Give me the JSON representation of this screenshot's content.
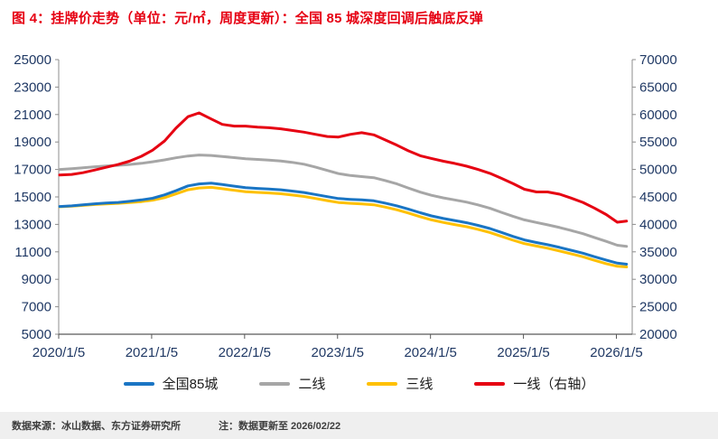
{
  "title": {
    "text": "图 4：挂牌价走势（单位：元/㎡，周度更新）：全国 85 城深度回调后触底反弹",
    "color": "#e60012"
  },
  "footer": {
    "source": "数据来源：冰山数据、东方证券研究所",
    "note": "注：数据更新至 2026/02/22"
  },
  "colors": {
    "title_red": "#e60012",
    "axis_label_navy": "#1f3864",
    "axis_line": "#8c8c8c",
    "x_axis_line": "#595959"
  },
  "chart_data": {
    "type": "line",
    "title": "挂牌价走势（元/㎡，周度更新）",
    "grid": false,
    "legend_position": "bottom",
    "x_domain": [
      2020.01,
      2026.18
    ],
    "x_ticks": [
      {
        "x": 2020.01,
        "label": "2020/1/5"
      },
      {
        "x": 2021.01,
        "label": "2021/1/5"
      },
      {
        "x": 2022.01,
        "label": "2022/1/5"
      },
      {
        "x": 2023.01,
        "label": "2023/1/5"
      },
      {
        "x": 2024.01,
        "label": "2024/1/5"
      },
      {
        "x": 2025.01,
        "label": "2025/1/5"
      },
      {
        "x": 2026.01,
        "label": "2026/1/5"
      }
    ],
    "left_axis": {
      "min": 5000,
      "max": 25000,
      "ticks": [
        25000,
        23000,
        21000,
        19000,
        17000,
        15000,
        13000,
        11000,
        9000,
        7000,
        5000
      ]
    },
    "right_axis": {
      "min": 20000,
      "max": 70000,
      "ticks": [
        70000,
        65000,
        60000,
        55000,
        50000,
        45000,
        40000,
        35000,
        30000,
        25000,
        20000
      ]
    },
    "x": [
      2020.02,
      2020.15,
      2020.27,
      2020.4,
      2020.52,
      2020.65,
      2020.77,
      2020.9,
      2021.02,
      2021.15,
      2021.27,
      2021.4,
      2021.52,
      2021.65,
      2021.77,
      2021.9,
      2022.02,
      2022.15,
      2022.27,
      2022.4,
      2022.52,
      2022.65,
      2022.77,
      2022.9,
      2023.02,
      2023.15,
      2023.27,
      2023.4,
      2023.52,
      2023.65,
      2023.77,
      2023.9,
      2024.02,
      2024.15,
      2024.27,
      2024.4,
      2024.52,
      2024.65,
      2024.77,
      2024.9,
      2025.02,
      2025.15,
      2025.27,
      2025.4,
      2025.52,
      2025.65,
      2025.77,
      2025.9,
      2026.02,
      2026.12
    ],
    "series": [
      {
        "key": "national-85-cities",
        "name": "全国85城",
        "color": "#1a75c4",
        "axis": "left",
        "values": [
          14300,
          14350,
          14420,
          14500,
          14550,
          14600,
          14680,
          14780,
          14900,
          15150,
          15450,
          15800,
          15950,
          16000,
          15900,
          15780,
          15680,
          15620,
          15580,
          15520,
          15430,
          15320,
          15180,
          15020,
          14880,
          14820,
          14780,
          14720,
          14550,
          14350,
          14120,
          13850,
          13620,
          13430,
          13280,
          13120,
          12930,
          12700,
          12420,
          12120,
          11870,
          11680,
          11520,
          11320,
          11120,
          10900,
          10650,
          10400,
          10180,
          10100
        ]
      },
      {
        "key": "tier-2-cities",
        "name": "二线",
        "color": "#a6a6a6",
        "axis": "left",
        "values": [
          17000,
          17050,
          17120,
          17200,
          17250,
          17300,
          17360,
          17450,
          17560,
          17700,
          17850,
          17980,
          18050,
          18020,
          17950,
          17860,
          17780,
          17730,
          17680,
          17620,
          17520,
          17380,
          17180,
          16930,
          16700,
          16560,
          16480,
          16400,
          16200,
          15950,
          15650,
          15350,
          15120,
          14930,
          14780,
          14620,
          14420,
          14170,
          13880,
          13580,
          13330,
          13140,
          12970,
          12770,
          12560,
          12320,
          12050,
          11760,
          11480,
          11400
        ]
      },
      {
        "key": "tier-3-cities",
        "name": "三线",
        "color": "#ffc000",
        "axis": "left",
        "values": [
          14280,
          14320,
          14380,
          14450,
          14490,
          14530,
          14590,
          14660,
          14760,
          14950,
          15220,
          15520,
          15650,
          15700,
          15600,
          15480,
          15380,
          15330,
          15290,
          15230,
          15140,
          15030,
          14890,
          14730,
          14590,
          14530,
          14490,
          14430,
          14260,
          14060,
          13830,
          13560,
          13330,
          13140,
          12990,
          12830,
          12640,
          12410,
          12130,
          11840,
          11600,
          11420,
          11260,
          11060,
          10860,
          10640,
          10390,
          10140,
          9950,
          9900
        ]
      },
      {
        "key": "tier-1-cities-right-axis",
        "name": "一线（右轴）",
        "color": "#e60012",
        "axis": "right",
        "values": [
          49000,
          49100,
          49400,
          49900,
          50400,
          50900,
          51500,
          52400,
          53500,
          55200,
          57500,
          59600,
          60300,
          59200,
          58200,
          57900,
          57900,
          57700,
          57600,
          57400,
          57100,
          56800,
          56400,
          56000,
          55900,
          56400,
          56700,
          56300,
          55400,
          54400,
          53400,
          52500,
          52000,
          51500,
          51100,
          50600,
          50000,
          49300,
          48400,
          47400,
          46400,
          45900,
          45900,
          45500,
          44800,
          44000,
          43000,
          41800,
          40400,
          40600
        ]
      }
    ]
  }
}
